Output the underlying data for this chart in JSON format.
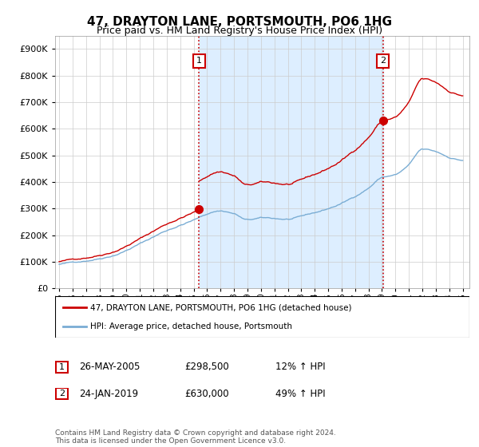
{
  "title": "47, DRAYTON LANE, PORTSMOUTH, PO6 1HG",
  "subtitle": "Price paid vs. HM Land Registry's House Price Index (HPI)",
  "legend_entry1": "47, DRAYTON LANE, PORTSMOUTH, PO6 1HG (detached house)",
  "legend_entry2": "HPI: Average price, detached house, Portsmouth",
  "marker1_date": "26-MAY-2005",
  "marker1_price": "£298,500",
  "marker1_hpi": "12% ↑ HPI",
  "marker2_date": "24-JAN-2019",
  "marker2_price": "£630,000",
  "marker2_hpi": "49% ↑ HPI",
  "footer": "Contains HM Land Registry data © Crown copyright and database right 2024.\nThis data is licensed under the Open Government Licence v3.0.",
  "red_color": "#cc0000",
  "blue_color": "#7aadd4",
  "shade_color": "#ddeeff",
  "vline_color": "#cc0000",
  "grid_color": "#cccccc",
  "ylim_max": 950000,
  "marker1_year": 2005.4,
  "marker1_value": 298500,
  "marker2_year": 2019.07,
  "marker2_value": 630000
}
